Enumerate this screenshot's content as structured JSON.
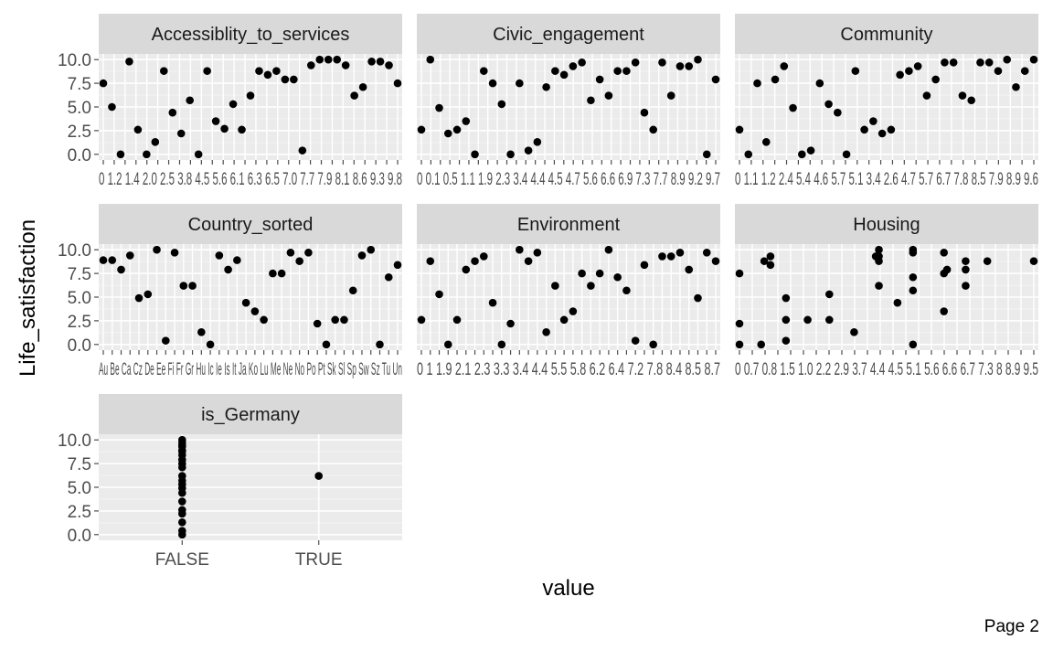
{
  "colors": {
    "panel_bg": "#ebebeb",
    "strip_bg": "#d9d9d9",
    "grid_major": "#ffffff",
    "grid_minor": "#f5f5f5",
    "point": "#000000",
    "tick": "#4d4d4d"
  },
  "page_label": "Page 2",
  "chart_data": {
    "type": "scatter",
    "facet_by": "variable",
    "xlabel": "value",
    "ylabel": "Life_satisfaction",
    "ylim": [
      0,
      10
    ],
    "yticks": [
      "0.0",
      "2.5",
      "5.0",
      "7.5",
      "10.0"
    ],
    "grid": true,
    "legend": "none",
    "panels": [
      {
        "name": "Accessiblity_to_services",
        "x_tick_labels": "0 1.2 1.4 2.0 2.5 3.8 4.5 5.6 6.1 6.3 6.5 7.0 7.7 7.9 8.1 8.6 9.3 9.8",
        "x_tick_count": 28,
        "y": [
          7.5,
          5.0,
          0.0,
          9.8,
          2.6,
          0.0,
          1.3,
          8.8,
          4.4,
          2.2,
          5.7,
          0.0,
          8.8,
          3.5,
          2.7,
          5.3,
          2.6,
          6.2,
          8.8,
          8.4,
          8.8,
          7.9,
          7.9,
          0.4,
          9.4,
          10.0,
          10.0,
          10.0,
          9.4,
          6.2,
          7.1,
          9.8,
          9.8,
          9.4,
          7.5
        ]
      },
      {
        "name": "Civic_engagement",
        "x_tick_labels": "0 0.1 0.5 1.1 1.9 2.3 3.4 4.4 4.5 4.7 5.6 6.6 6.9 7.3 7.7 8.9 9.2 9.7",
        "x_tick_count": 32,
        "y": [
          2.6,
          10.0,
          4.9,
          2.2,
          2.6,
          3.5,
          0.0,
          8.8,
          7.5,
          5.3,
          0.0,
          7.5,
          0.4,
          1.3,
          7.1,
          8.8,
          8.4,
          9.3,
          9.7,
          5.7,
          7.9,
          6.2,
          8.8,
          8.8,
          9.7,
          4.4,
          2.6,
          9.7,
          6.2,
          9.3,
          9.3,
          10.0,
          0.0,
          7.9
        ]
      },
      {
        "name": "Community",
        "x_tick_labels": "0 1.1 1.2 2.4 5.4 4.6 5.7 5.1 3.4 2.6 4.7 5.7 6.7 7.8 8.5 7.9 8.9 9.6",
        "x_tick_count": 26,
        "y": [
          2.6,
          0.0,
          7.5,
          1.3,
          7.9,
          9.3,
          4.9,
          0.0,
          0.4,
          7.5,
          5.3,
          4.4,
          0.0,
          8.8,
          2.6,
          3.5,
          2.2,
          2.6,
          8.4,
          8.8,
          9.3,
          6.2,
          7.9,
          9.7,
          9.7,
          6.2,
          5.7,
          9.7,
          9.7,
          8.8,
          10.0,
          7.1,
          8.8,
          10.0
        ]
      },
      {
        "name": "Country_sorted",
        "x_tick_labels": "Au Be Ca Cz De Ee Fi Fr Gr Hu Ic Ie Is It Ja Ko Lu Me Ne No Po Pt Sk Sl Sp Sw Sz Tu Un",
        "x_tick_count": 34,
        "y": [
          8.9,
          8.9,
          7.9,
          9.4,
          4.9,
          5.3,
          10.0,
          0.4,
          9.7,
          6.2,
          6.2,
          1.3,
          0.0,
          9.4,
          7.9,
          8.9,
          4.4,
          3.5,
          2.6,
          7.5,
          7.5,
          9.7,
          8.8,
          9.7,
          2.2,
          0.0,
          2.6,
          2.6,
          5.7,
          9.4,
          10.0,
          0.0,
          7.1,
          8.4
        ]
      },
      {
        "name": "Environment",
        "x_tick_labels": "0 1 1.9 2.1 2.3 3.3 3.4 4.4 5.5 5.8 6.2 6.4 7.2 7.8 8.4 8.5 8.7",
        "x_tick_count": 34,
        "y": [
          2.6,
          8.8,
          5.3,
          0.0,
          2.6,
          7.9,
          8.8,
          9.3,
          4.4,
          0.0,
          2.2,
          10.0,
          8.8,
          9.7,
          1.3,
          6.2,
          2.6,
          3.5,
          7.5,
          6.2,
          7.5,
          10.0,
          7.1,
          5.7,
          0.4,
          8.4,
          0.0,
          9.3,
          9.3,
          9.7,
          7.9,
          4.9,
          9.7,
          8.8
        ]
      },
      {
        "name": "Housing",
        "x_tick_labels": "0 0.7 0.8 1.5 1.0 2.2 2.9 3.7 4.4 4.5 5.1 5.6 6.6 6.7 7.3 8 8.9 9.5",
        "x_tick_count": 24,
        "points": [
          [
            0,
            7.5
          ],
          [
            0,
            2.2
          ],
          [
            0,
            0.0
          ],
          [
            0.7,
            0.0
          ],
          [
            0.8,
            8.8
          ],
          [
            1.5,
            4.9
          ],
          [
            1.5,
            2.6
          ],
          [
            1.5,
            0.4
          ],
          [
            1.0,
            9.3
          ],
          [
            1.0,
            8.4
          ],
          [
            2.2,
            2.6
          ],
          [
            2.9,
            5.3
          ],
          [
            2.9,
            2.6
          ],
          [
            3.7,
            1.3
          ],
          [
            4.4,
            9.3
          ],
          [
            4.5,
            10.0
          ],
          [
            4.5,
            9.3
          ],
          [
            4.5,
            8.8
          ],
          [
            4.5,
            6.2
          ],
          [
            5.1,
            4.4
          ],
          [
            5.6,
            10.0
          ],
          [
            5.6,
            9.7
          ],
          [
            5.6,
            7.1
          ],
          [
            5.6,
            5.7
          ],
          [
            5.6,
            0.0
          ],
          [
            6.6,
            9.7
          ],
          [
            6.6,
            7.5
          ],
          [
            6.6,
            3.5
          ],
          [
            6.7,
            7.9
          ],
          [
            7.3,
            8.8
          ],
          [
            7.3,
            7.9
          ],
          [
            7.3,
            6.2
          ],
          [
            8,
            8.8
          ],
          [
            9.5,
            8.8
          ]
        ]
      },
      {
        "name": "is_Germany",
        "categories": [
          "FALSE",
          "TRUE"
        ],
        "points": [
          [
            "FALSE",
            0.0
          ],
          [
            "FALSE",
            0.4
          ],
          [
            "FALSE",
            1.3
          ],
          [
            "FALSE",
            2.2
          ],
          [
            "FALSE",
            2.6
          ],
          [
            "FALSE",
            3.5
          ],
          [
            "FALSE",
            4.4
          ],
          [
            "FALSE",
            4.9
          ],
          [
            "FALSE",
            5.3
          ],
          [
            "FALSE",
            5.7
          ],
          [
            "FALSE",
            6.2
          ],
          [
            "FALSE",
            7.1
          ],
          [
            "FALSE",
            7.5
          ],
          [
            "FALSE",
            7.9
          ],
          [
            "FALSE",
            8.4
          ],
          [
            "FALSE",
            8.8
          ],
          [
            "FALSE",
            8.9
          ],
          [
            "FALSE",
            9.3
          ],
          [
            "FALSE",
            9.4
          ],
          [
            "FALSE",
            9.7
          ],
          [
            "FALSE",
            10.0
          ],
          [
            "TRUE",
            6.2
          ]
        ]
      }
    ]
  }
}
